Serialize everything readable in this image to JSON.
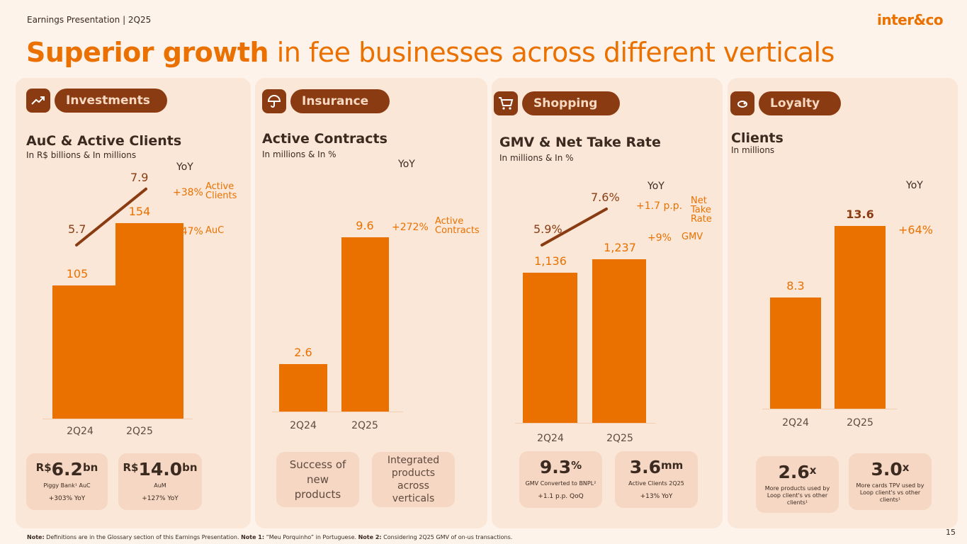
{
  "header": {
    "top_label": "Earnings Presentation | 2Q25",
    "logo": "inter&co",
    "title_bold": "Superior growth",
    "title_rest": " in fee businesses across different verticals"
  },
  "colors": {
    "accent": "#ea7100",
    "dark": "#8a3b12",
    "card": "#fbe7d8",
    "kpi": "#f6d7c3"
  },
  "cards": {
    "investments": {
      "pill_label": "Investments",
      "icon": "trend-up-icon",
      "title": "AuC & Active Clients",
      "subtitle": "In R$ billions & In millions",
      "yoy": "YoY",
      "bars": {
        "categories": [
          "2Q24",
          "2Q25"
        ],
        "values": [
          105,
          154
        ],
        "labels": [
          "105",
          "154"
        ]
      },
      "line": {
        "values": [
          5.7,
          7.9
        ],
        "labels": [
          "5.7",
          "7.9"
        ]
      },
      "deltas": [
        {
          "value": "+38%",
          "label": "Active Clients"
        },
        {
          "value": "+47%",
          "label": "AuC"
        }
      ],
      "kpis": [
        {
          "currency": "R$",
          "value": "6.2",
          "unit": "bn",
          "desc": "Piggy Bank¹ AuC",
          "change": "+303% YoY"
        },
        {
          "currency": "R$",
          "value": "14.0",
          "unit": "bn",
          "desc": "AuM",
          "change": "+127% YoY"
        }
      ]
    },
    "insurance": {
      "pill_label": "Insurance",
      "icon": "umbrella-icon",
      "title": "Active Contracts",
      "subtitle": "In millions & In %",
      "yoy": "YoY",
      "bars": {
        "categories": [
          "2Q24",
          "2Q25"
        ],
        "values": [
          2.6,
          9.6
        ],
        "labels": [
          "2.6",
          "9.6"
        ]
      },
      "deltas": [
        {
          "value": "+272%",
          "label": "Active Contracts"
        }
      ],
      "kpis": [
        {
          "text": "Success of new products"
        },
        {
          "text": "Integrated products across verticals"
        }
      ]
    },
    "shopping": {
      "pill_label": "Shopping",
      "icon": "cart-icon",
      "title": "GMV & Net Take Rate",
      "subtitle": "In millions & In %",
      "yoy": "YoY",
      "bars": {
        "categories": [
          "2Q24",
          "2Q25"
        ],
        "values": [
          1136,
          1237
        ],
        "labels": [
          "1,136",
          "1,237"
        ]
      },
      "line": {
        "values": [
          5.9,
          7.6
        ],
        "labels": [
          "5.9%",
          "7.6%"
        ]
      },
      "deltas": [
        {
          "value": "+1.7 p.p.",
          "label": "Net Take Rate"
        },
        {
          "value": "+9%",
          "label": "GMV"
        }
      ],
      "kpis": [
        {
          "value": "9.3",
          "unit": "%",
          "desc": "GMV Converted to BNPL²",
          "change": "+1.1 p.p. QoQ"
        },
        {
          "value": "3.6",
          "unit": "mm",
          "desc": "Active Clients 2Q25",
          "change": "+13% YoY"
        }
      ]
    },
    "loyalty": {
      "pill_label": "Loyalty",
      "icon": "loop-icon",
      "title": "Clients",
      "subtitle": "In millions",
      "yoy": "YoY",
      "bars": {
        "categories": [
          "2Q24",
          "2Q25"
        ],
        "values": [
          8.3,
          13.6
        ],
        "labels": [
          "8.3",
          "13.6"
        ]
      },
      "deltas": [
        {
          "value": "+64%",
          "label": ""
        }
      ],
      "kpis": [
        {
          "value": "2.6",
          "unit": "x",
          "desc": "More products used by Loop client's vs other clients¹"
        },
        {
          "value": "3.0",
          "unit": "x",
          "desc": "More cards TPV used by Loop client's vs other clients¹"
        }
      ]
    }
  },
  "footer": {
    "note_b1": "Note:",
    "note_t1": " Definitions are in the Glossary section of this Earnings Presentation. ",
    "note_b2": "Note 1:",
    "note_t2": " “Meu Porquinho” in Portuguese. ",
    "note_b3": "Note 2:",
    "note_t3": " Considering 2Q25 GMV of on-us transactions.",
    "page_number": "15"
  }
}
